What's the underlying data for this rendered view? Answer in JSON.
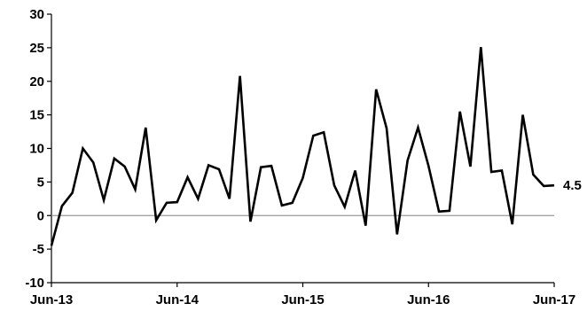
{
  "chart_data": {
    "type": "line",
    "title": "",
    "xlabel": "",
    "ylabel": "",
    "ylim": [
      -10,
      30
    ],
    "yticks": [
      "30",
      "25",
      "20",
      "15",
      "10",
      "5",
      "0",
      "-5",
      "-10"
    ],
    "xticks": [
      "Jun-13",
      "Jun-14",
      "Jun-15",
      "Jun-16",
      "Jun-17"
    ],
    "grid": false,
    "legend": "none",
    "end_label": "4.5",
    "line_color": "#000000",
    "zero_line_color": "#999999",
    "series": [
      {
        "values": [
          -4.5,
          1.4,
          3.4,
          10.0,
          7.9,
          2.3,
          8.5,
          7.3,
          3.9,
          13.1,
          -0.7,
          1.9,
          2.0,
          5.7,
          2.5,
          7.5,
          6.9,
          2.5,
          20.8,
          -0.9,
          7.2,
          7.4,
          1.5,
          1.9,
          5.6,
          11.9,
          12.4,
          4.5,
          1.3,
          6.7,
          -1.5,
          18.8,
          13.0,
          -2.8,
          8.2,
          13.1,
          7.4,
          0.6,
          0.7,
          15.5,
          7.3,
          25.1,
          6.5,
          6.7,
          -1.3,
          15.0,
          6.1,
          4.4,
          4.5
        ]
      }
    ]
  }
}
